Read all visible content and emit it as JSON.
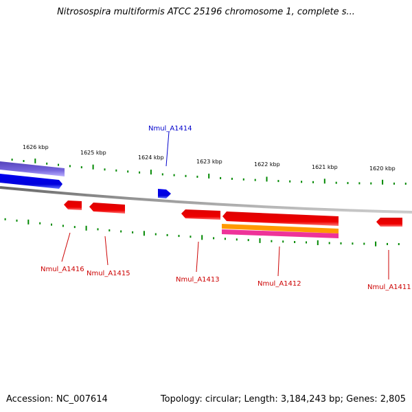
{
  "title": "Nitrosospira multiformis ATCC 25196 chromosome 1, complete s...",
  "footer": {
    "accession": "Accession: NC_007614",
    "summary": "Topology: circular; Length: 3,184,243 bp; Genes: 2,805"
  },
  "ruler_labels": [
    "1626 kbp",
    "1625 kbp",
    "1624 kbp",
    "1623 kbp",
    "1622 kbp",
    "1621 kbp",
    "1620 kbp"
  ],
  "gene_labels": [
    {
      "name": "Nmul_A1414",
      "color": "#0000cc"
    },
    {
      "name": "Nmul_A1416",
      "color": "#cc0000"
    },
    {
      "name": "Nmul_A1415",
      "color": "#cc0000"
    },
    {
      "name": "Nmul_A1413",
      "color": "#cc0000"
    },
    {
      "name": "Nmul_A1412",
      "color": "#cc0000"
    },
    {
      "name": "Nmul_A1411",
      "color": "#cc0000"
    }
  ],
  "colors": {
    "forward_gene": "#0000ee",
    "reverse_gene": "#ee0000",
    "ruler_ticks": "#008800",
    "backbone": "#808080",
    "orange_feature": "#ff9900",
    "magenta_feature": "#ee3399",
    "purple_feature": "#6655cc"
  }
}
